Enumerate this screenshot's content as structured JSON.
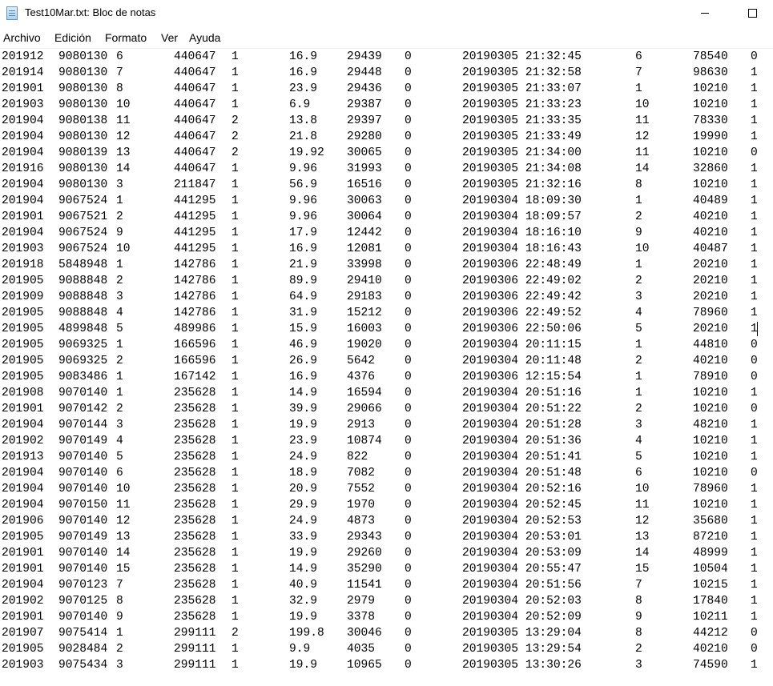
{
  "window": {
    "title": "Test10Mar.txt: Bloc de notas",
    "icon": "notepad-icon"
  },
  "menu": [
    "Archivo",
    "Edición",
    "Formato",
    "Ver",
    "Ayuda"
  ],
  "rows": [
    [
      "201912",
      "9080130",
      "6",
      "440647",
      "1",
      "16.9",
      "29439",
      "0",
      "20190305 21:32:45",
      "6",
      "78540",
      "0"
    ],
    [
      "201914",
      "9080130",
      "7",
      "440647",
      "1",
      "16.9",
      "29448",
      "0",
      "20190305 21:32:58",
      "7",
      "98630",
      "1"
    ],
    [
      "201901",
      "9080130",
      "8",
      "440647",
      "1",
      "23.9",
      "29436",
      "0",
      "20190305 21:33:07",
      "1",
      "10210",
      "1"
    ],
    [
      "201903",
      "9080130",
      "10",
      "440647",
      "1",
      "6.9",
      "29387",
      "0",
      "20190305 21:33:23",
      "10",
      "10210",
      "1"
    ],
    [
      "201904",
      "9080138",
      "11",
      "440647",
      "2",
      "13.8",
      "29397",
      "0",
      "20190305 21:33:35",
      "11",
      "78330",
      "1"
    ],
    [
      "201904",
      "9080130",
      "12",
      "440647",
      "2",
      "21.8",
      "29280",
      "0",
      "20190305 21:33:49",
      "12",
      "19990",
      "1"
    ],
    [
      "201904",
      "9080139",
      "13",
      "440647",
      "2",
      "19.92",
      "30065",
      "0",
      "20190305 21:34:00",
      "11",
      "10210",
      "0"
    ],
    [
      "201916",
      "9080130",
      "14",
      "440647",
      "1",
      "9.96",
      "31993",
      "0",
      "20190305 21:34:08",
      "14",
      "32860",
      "1"
    ],
    [
      "201904",
      "9080130",
      "3",
      "211847",
      "1",
      "56.9",
      "16516",
      "0",
      "20190305 21:32:16",
      "8",
      "10210",
      "1"
    ],
    [
      "201904",
      "9067524",
      "1",
      "441295",
      "1",
      "9.96",
      "30063",
      "0",
      "20190304 18:09:30",
      "1",
      "40489",
      "1"
    ],
    [
      "201901",
      "9067521",
      "2",
      "441295",
      "1",
      "9.96",
      "30064",
      "0",
      "20190304 18:09:57",
      "2",
      "40210",
      "1"
    ],
    [
      "201904",
      "9067524",
      "9",
      "441295",
      "1",
      "17.9",
      "12442",
      "0",
      "20190304 18:16:10",
      "9",
      "40210",
      "1"
    ],
    [
      "201903",
      "9067524",
      "10",
      "441295",
      "1",
      "16.9",
      "12081",
      "0",
      "20190304 18:16:43",
      "10",
      "40487",
      "1"
    ],
    [
      "201918",
      "5848948",
      "1",
      "142786",
      "1",
      "21.9",
      "33998",
      "0",
      "20190306 22:48:49",
      "1",
      "20210",
      "1"
    ],
    [
      "201905",
      "9088848",
      "2",
      "142786",
      "1",
      "89.9",
      "29410",
      "0",
      "20190306 22:49:02",
      "2",
      "20210",
      "1"
    ],
    [
      "201909",
      "9088848",
      "3",
      "142786",
      "1",
      "64.9",
      "29183",
      "0",
      "20190306 22:49:42",
      "3",
      "20210",
      "1"
    ],
    [
      "201905",
      "9088848",
      "4",
      "142786",
      "1",
      "31.9",
      "15212",
      "0",
      "20190306 22:49:52",
      "4",
      "78960",
      "1"
    ],
    [
      "201905",
      "4899848",
      "5",
      "489986",
      "1",
      "15.9",
      "16003",
      "0",
      "20190306 22:50:06",
      "5",
      "20210",
      "1"
    ],
    [
      "201905",
      "9069325",
      "1",
      "166596",
      "1",
      "46.9",
      "19020",
      "0",
      "20190304 20:11:15",
      "1",
      "44810",
      "0"
    ],
    [
      "201905",
      "9069325",
      "2",
      "166596",
      "1",
      "26.9",
      "5642",
      "0",
      "20190304 20:11:48",
      "2",
      "40210",
      "0"
    ],
    [
      "201905",
      "9083486",
      "1",
      "167142",
      "1",
      "16.9",
      "4376",
      "0",
      "20190306 12:15:54",
      "1",
      "78910",
      "0"
    ],
    [
      "201908",
      "9070140",
      "1",
      "235628",
      "1",
      "14.9",
      "16594",
      "0",
      "20190304 20:51:16",
      "1",
      "10210",
      "1"
    ],
    [
      "201901",
      "9070142",
      "2",
      "235628",
      "1",
      "39.9",
      "29066",
      "0",
      "20190304 20:51:22",
      "2",
      "10210",
      "0"
    ],
    [
      "201904",
      "9070144",
      "3",
      "235628",
      "1",
      "19.9",
      "2913",
      "0",
      "20190304 20:51:28",
      "3",
      "48210",
      "1"
    ],
    [
      "201902",
      "9070149",
      "4",
      "235628",
      "1",
      "23.9",
      "10874",
      "0",
      "20190304 20:51:36",
      "4",
      "10210",
      "1"
    ],
    [
      "201913",
      "9070140",
      "5",
      "235628",
      "1",
      "24.9",
      "822",
      "0",
      "20190304 20:51:41",
      "5",
      "10210",
      "1"
    ],
    [
      "201904",
      "9070140",
      "6",
      "235628",
      "1",
      "18.9",
      "7082",
      "0",
      "20190304 20:51:48",
      "6",
      "10210",
      "0"
    ],
    [
      "201904",
      "9070140",
      "10",
      "235628",
      "1",
      "20.9",
      "7552",
      "0",
      "20190304 20:52:16",
      "10",
      "78960",
      "1"
    ],
    [
      "201904",
      "9070150",
      "11",
      "235628",
      "1",
      "29.9",
      "1970",
      "0",
      "20190304 20:52:45",
      "11",
      "10210",
      "1"
    ],
    [
      "201906",
      "9070140",
      "12",
      "235628",
      "1",
      "24.9",
      "4873",
      "0",
      "20190304 20:52:53",
      "12",
      "35680",
      "1"
    ],
    [
      "201905",
      "9070149",
      "13",
      "235628",
      "1",
      "33.9",
      "29343",
      "0",
      "20190304 20:53:01",
      "13",
      "87210",
      "1"
    ],
    [
      "201901",
      "9070140",
      "14",
      "235628",
      "1",
      "19.9",
      "29260",
      "0",
      "20190304 20:53:09",
      "14",
      "48999",
      "1"
    ],
    [
      "201901",
      "9070140",
      "15",
      "235628",
      "1",
      "14.9",
      "35290",
      "0",
      "20190304 20:55:47",
      "15",
      "10504",
      "1"
    ],
    [
      "201904",
      "9070123",
      "7",
      "235628",
      "1",
      "40.9",
      "11541",
      "0",
      "20190304 20:51:56",
      "7",
      "10215",
      "1"
    ],
    [
      "201902",
      "9070125",
      "8",
      "235628",
      "1",
      "32.9",
      "2979",
      "0",
      "20190304 20:52:03",
      "8",
      "17840",
      "1"
    ],
    [
      "201901",
      "9070140",
      "9",
      "235628",
      "1",
      "19.9",
      "3378",
      "0",
      "20190304 20:52:09",
      "9",
      "10211",
      "1"
    ],
    [
      "201907",
      "9075414",
      "1",
      "299111",
      "2",
      "199.8",
      "30046",
      "0",
      "20190305 13:29:04",
      "8",
      "44212",
      "0"
    ],
    [
      "201905",
      "9028484",
      "2",
      "299111",
      "1",
      "9.9",
      "4035",
      "0",
      "20190305 13:29:54",
      "2",
      "40210",
      "0"
    ],
    [
      "201903",
      "9075434",
      "3",
      "299111",
      "1",
      "19.9",
      "10965",
      "0",
      "20190305 13:30:26",
      "3",
      "74590",
      "1"
    ]
  ]
}
